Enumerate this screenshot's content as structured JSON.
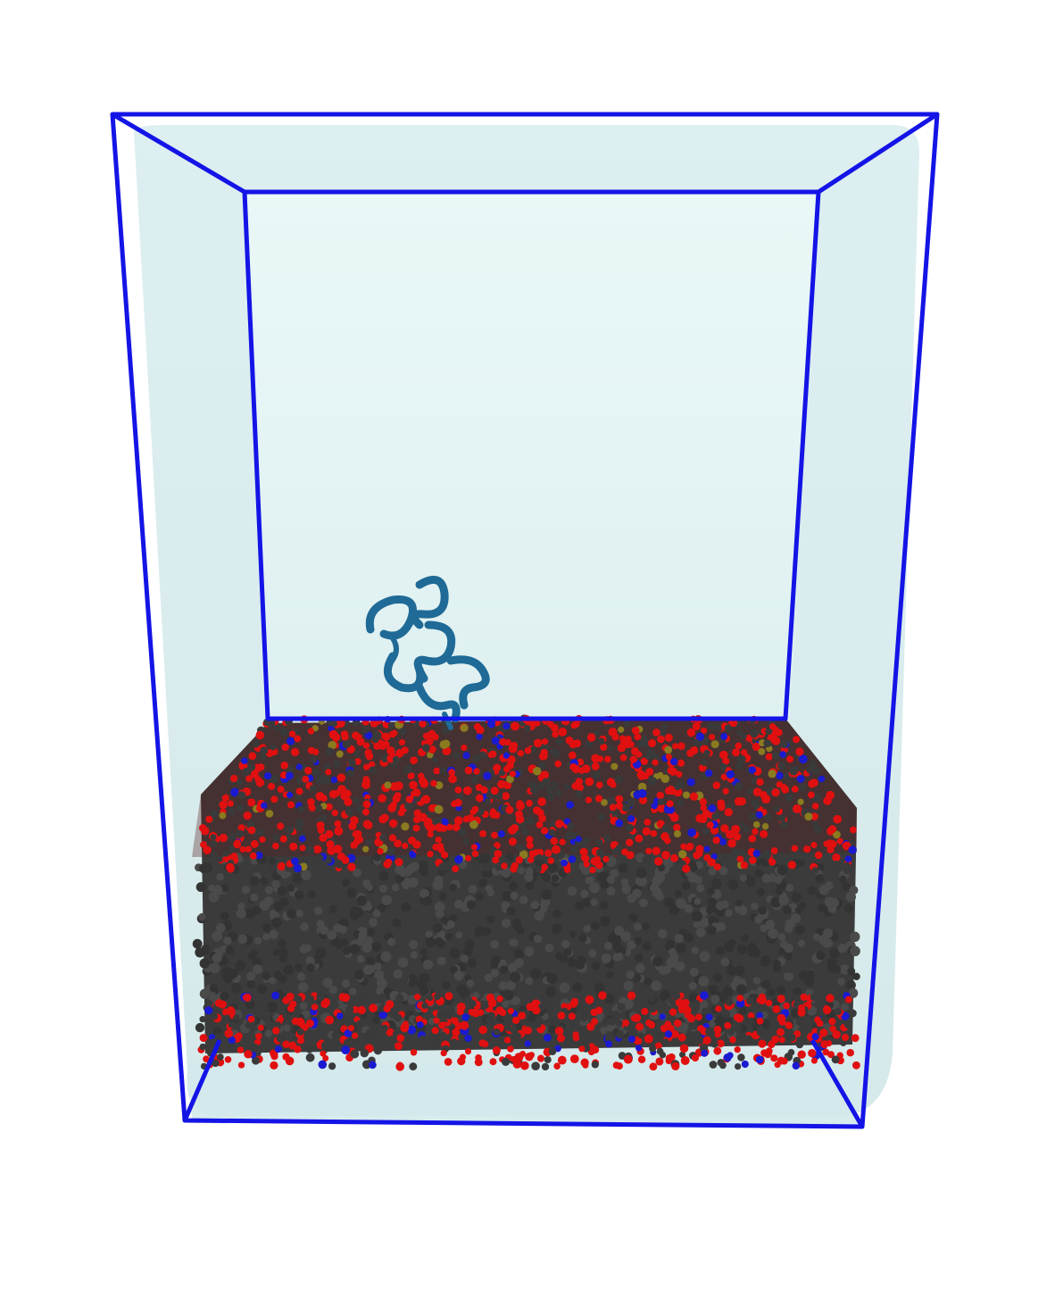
{
  "scene": {
    "description_colors": {
      "background": "#ffffff",
      "box_edges": "#1414e6",
      "water": "#cfe6e8",
      "water_inner": "#e6f6f6",
      "protein": "#1f6a96",
      "lipid_tails": "#3a3a3a",
      "oxygen": "#e01010",
      "nitrogen": "#1a1ad0",
      "phosphorus": "#8a7a20"
    },
    "objects": [
      "simulation-box",
      "water-volume",
      "lipid-bilayer",
      "protein"
    ]
  }
}
